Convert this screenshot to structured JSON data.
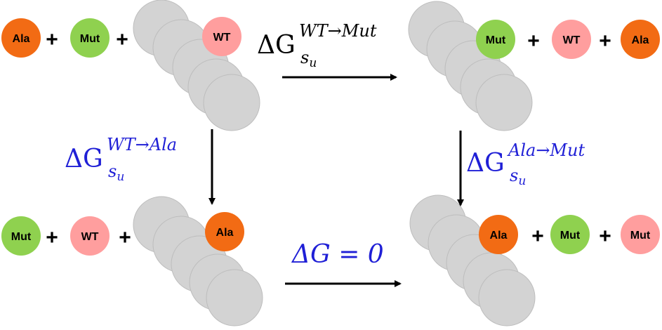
{
  "colors": {
    "ala": "#f26b14",
    "mut": "#8fd14f",
    "wt": "#ff9e9e",
    "chain": "#d3d3d3",
    "chain_stroke": "#b8b8b8",
    "equation_blue": "#1f1fd6",
    "equation_black": "#000000"
  },
  "labels": {
    "ala": "Ala",
    "mut": "Mut",
    "wt": "WT",
    "plus": "+"
  },
  "equations": {
    "top": {
      "delta": "ΔG",
      "sub": "s",
      "subsub": "u",
      "sup": "WT→Mut"
    },
    "left": {
      "delta": "ΔG",
      "sub": "s",
      "subsub": "u",
      "sup": "WT→Ala"
    },
    "right": {
      "delta": "ΔG",
      "sub": "s",
      "subsub": "u",
      "sup": "Ala→Mut"
    },
    "bottom": {
      "text": "ΔG = 0"
    }
  }
}
